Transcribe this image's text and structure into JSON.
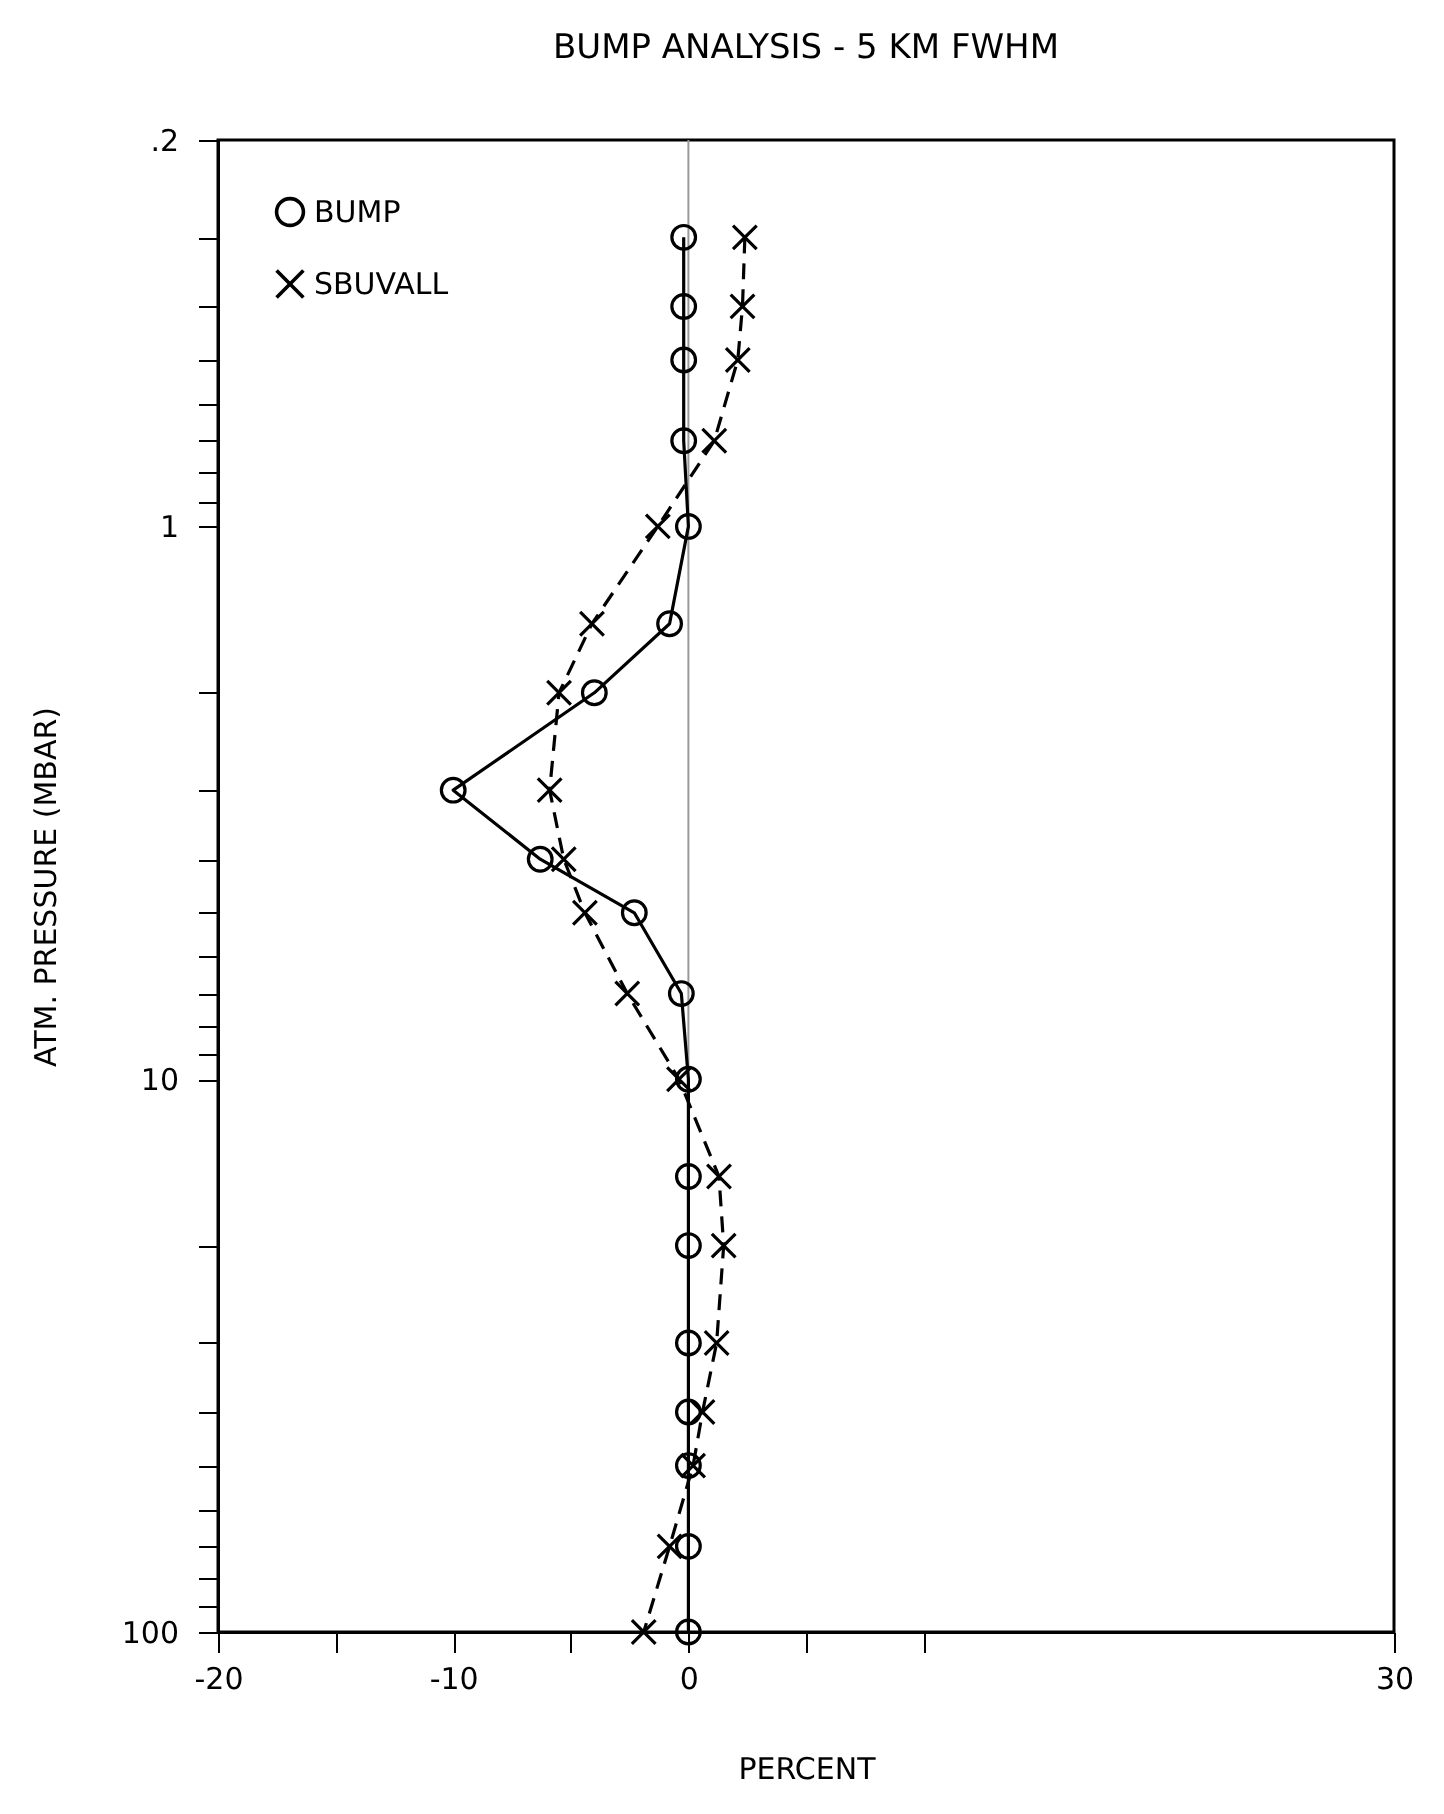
{
  "chart_data": {
    "type": "line",
    "title": "BUMP ANALYSIS - 5 KM FWHM",
    "xlabel": "PERCENT",
    "ylabel": "ATM. PRESSURE (MBAR)",
    "log": "y",
    "xlim": [
      -20,
      30
    ],
    "ylim": [
      100,
      0.2
    ],
    "xticks": [
      -20,
      {
        "value": -15,
        "label": null
      },
      -10,
      {
        "value": -5,
        "label": null
      },
      0,
      {
        "value": 5,
        "label": null
      },
      {
        "value": 10,
        "label": null
      },
      30
    ],
    "yticks": [
      {
        "value": 0.2,
        "label": ".2"
      },
      {
        "value": 0.3,
        "label": null
      },
      {
        "value": 0.4,
        "label": null
      },
      {
        "value": 0.5,
        "label": null
      },
      {
        "value": 0.6,
        "label": null
      },
      {
        "value": 0.7,
        "label": null
      },
      {
        "value": 0.8,
        "label": null
      },
      {
        "value": 0.9,
        "label": null
      },
      1,
      {
        "value": 2,
        "label": null
      },
      {
        "value": 3,
        "label": null
      },
      {
        "value": 4,
        "label": null
      },
      {
        "value": 5,
        "label": null
      },
      {
        "value": 6,
        "label": null
      },
      {
        "value": 7,
        "label": null
      },
      {
        "value": 8,
        "label": null
      },
      {
        "value": 9,
        "label": null
      },
      10,
      {
        "value": 20,
        "label": null
      },
      {
        "value": 30,
        "label": null
      },
      {
        "value": 40,
        "label": null
      },
      {
        "value": 50,
        "label": null
      },
      {
        "value": 60,
        "label": null
      },
      {
        "value": 70,
        "label": null
      },
      {
        "value": 80,
        "label": null
      },
      {
        "value": 90,
        "label": null
      },
      100
    ],
    "grid": false,
    "legend": "top left",
    "ref_lines": [
      {
        "axis": "x",
        "value": 0,
        "color": "#999999"
      }
    ],
    "series": [
      {
        "name": "BUMP",
        "color": "#000000",
        "marker": "circle",
        "line_style": "solid",
        "x": [
          -0.2,
          -0.2,
          -0.2,
          -0.2,
          0,
          -0.8,
          -4,
          -10,
          -6.3,
          -2.3,
          -0.3,
          0,
          0,
          0,
          0,
          0,
          0,
          0,
          0
        ],
        "values": [
          0.3,
          0.4,
          0.5,
          0.7,
          1,
          1.5,
          2,
          3,
          4,
          5,
          7,
          10,
          15,
          20,
          30,
          40,
          50,
          70,
          100
        ]
      },
      {
        "name": "SBUVALL",
        "color": "#000000",
        "marker": "cross",
        "line_style": "dashed",
        "x": [
          2.4,
          2.3,
          2.1,
          1.1,
          -1.3,
          -4.1,
          -5.5,
          -5.9,
          -5.3,
          -4.4,
          -2.6,
          -0.4,
          1.3,
          1.5,
          1.2,
          0.6,
          0.2,
          -0.8,
          -1.9
        ],
        "values": [
          0.3,
          0.4,
          0.5,
          0.7,
          1,
          1.5,
          2,
          3,
          4,
          5,
          7,
          10,
          15,
          20,
          30,
          40,
          50,
          70,
          100
        ]
      }
    ]
  }
}
